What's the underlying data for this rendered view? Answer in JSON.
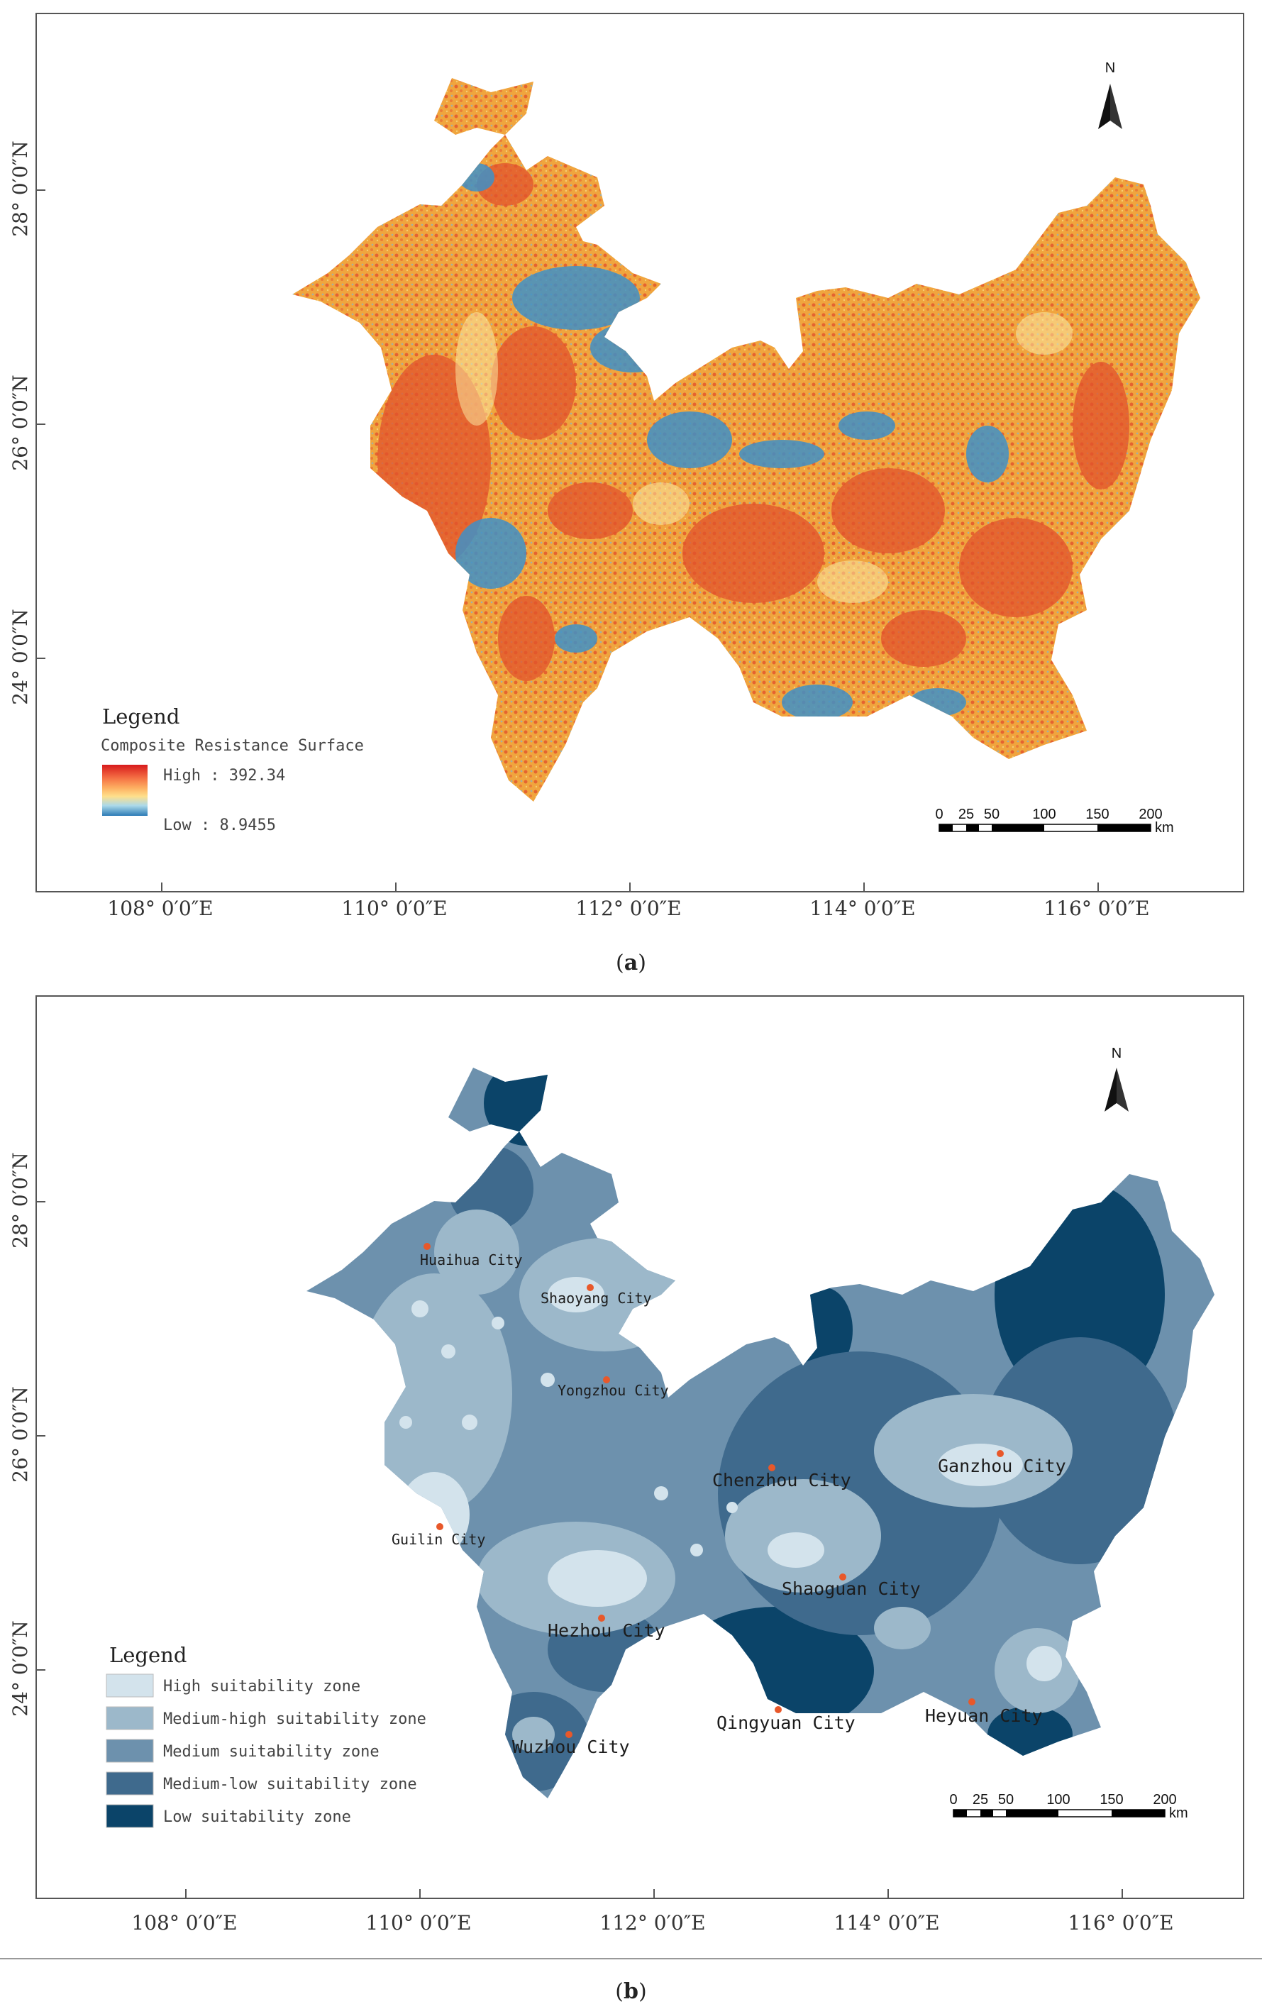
{
  "panels": {
    "a": {
      "caption_label": "a",
      "legend": {
        "title": "Legend",
        "subtitle": "Composite Resistance Surface",
        "high_label": "High : 392.34",
        "low_label": "Low : 8.9455",
        "gradient_colors": [
          "#d7191c",
          "#f46d43",
          "#fdae61",
          "#fee08b",
          "#abd9e9",
          "#2c7bb6"
        ]
      },
      "fill_colors": {
        "orange": "#f0a53e",
        "red": "#e2532c",
        "blue": "#3f90c7"
      }
    },
    "b": {
      "caption_label": "b",
      "legend": {
        "title": "Legend",
        "items": [
          {
            "label": "High suitability zone",
            "color": "#d3e3ec"
          },
          {
            "label": "Medium-high suitability zone",
            "color": "#9cb8ca"
          },
          {
            "label": "Medium suitability zone",
            "color": "#6d91ad"
          },
          {
            "label": "Medium-low suitability zone",
            "color": "#3f6a8d"
          },
          {
            "label": "Low suitability zone",
            "color": "#0b4469"
          }
        ]
      },
      "cities": [
        {
          "name": "Huaihua City",
          "size": "small"
        },
        {
          "name": "Shaoyang City",
          "size": "small"
        },
        {
          "name": "Yongzhou City",
          "size": "small"
        },
        {
          "name": "Chenzhou City",
          "size": "big"
        },
        {
          "name": "Ganzhou City",
          "size": "big"
        },
        {
          "name": "Guilin City",
          "size": "small"
        },
        {
          "name": "Shaoguan City",
          "size": "big"
        },
        {
          "name": "Hezhou City",
          "size": "big"
        },
        {
          "name": "Qingyuan City",
          "size": "big"
        },
        {
          "name": "Heyuan City",
          "size": "big"
        },
        {
          "name": "Wuzhou City",
          "size": "big"
        }
      ],
      "city_marker_color": "#e8582a"
    }
  },
  "axes": {
    "longitude_labels": [
      "108° 0′0″E",
      "110° 0′0″E",
      "112° 0′0″E",
      "114° 0′0″E",
      "116° 0′0″E"
    ],
    "latitude_labels": [
      "28° 0′0″N",
      "26° 0′0″N",
      "24° 0′0″N"
    ]
  },
  "scale_bar": {
    "ticks": [
      "0",
      "25",
      "50",
      "100",
      "150",
      "200"
    ],
    "unit": "km"
  },
  "north_arrow": {
    "label": "N"
  }
}
